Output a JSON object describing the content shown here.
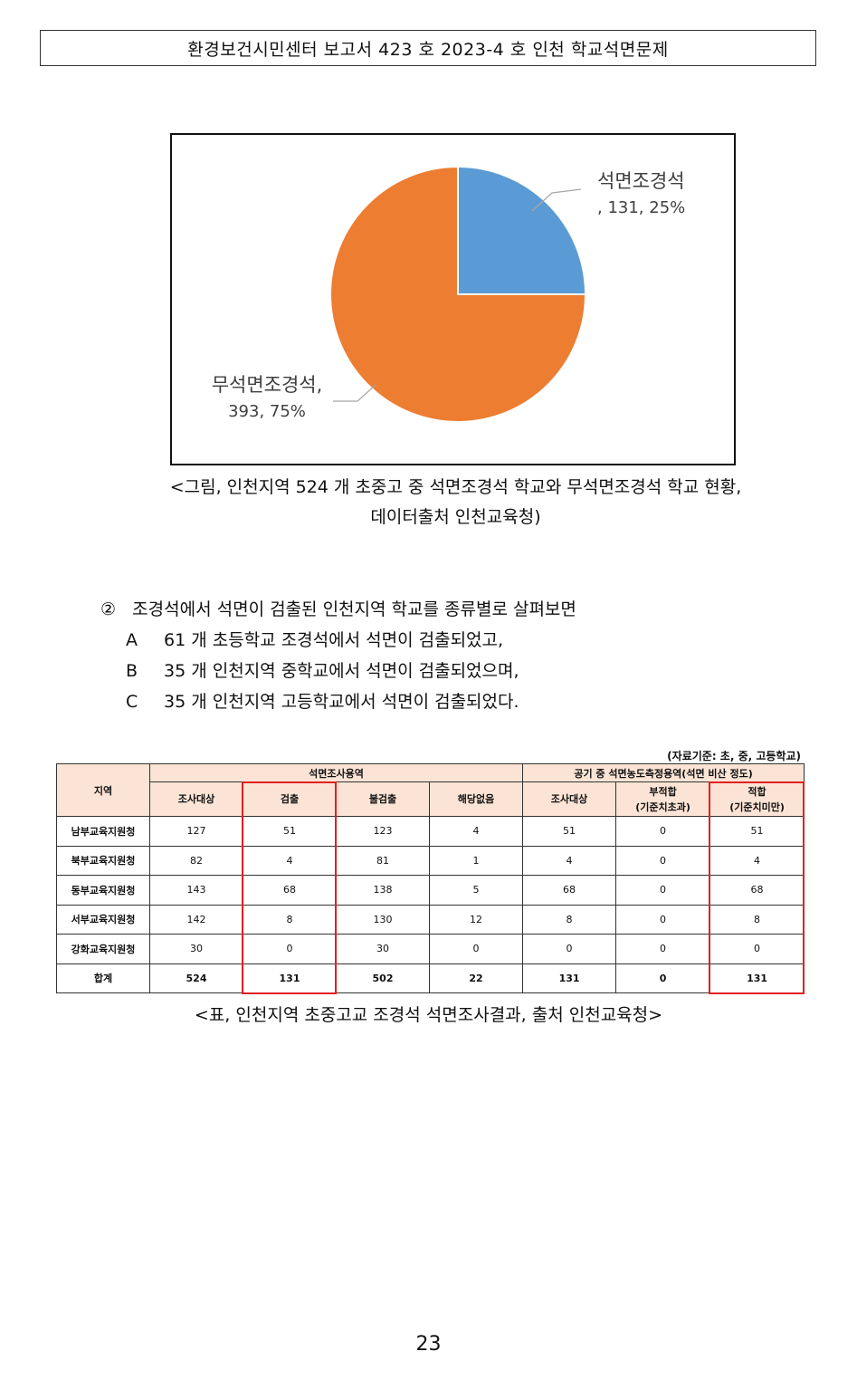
{
  "header": {
    "title": "환경보건시민센터 보고서 423 호 2023-4 호 인천 학교석면문제"
  },
  "chart_data": {
    "type": "pie",
    "slices": [
      {
        "name": "석면조경석",
        "value": 131,
        "percent": 25,
        "label_line1": "석면조경석",
        "label_line2": ", 131, 25%",
        "color": "#5b9bd5"
      },
      {
        "name": "무석면조경석",
        "value": 393,
        "percent": 75,
        "label_line1": "무석면조경석,",
        "label_line2": "393, 75%",
        "color": "#ed7d31"
      }
    ]
  },
  "figure_caption": {
    "line1": "<그림, 인천지역 524 개 초중고 중 석면조경석 학교와 무석면조경석 학교 현황,",
    "line2": "데이터출처 인천교육청)"
  },
  "section": {
    "marker": "②",
    "intro": "조경석에서 석면이 검출된 인천지역 학교를 종류별로 살펴보면",
    "items": [
      {
        "label": "A",
        "text": "61 개 초등학교 조경석에서 석면이 검출되었고,"
      },
      {
        "label": "B",
        "text": "35 개 인천지역 중학교에서 석면이 검출되었으며,"
      },
      {
        "label": "C",
        "text": "35 개 인천지역 고등학교에서 석면이 검출되었다."
      }
    ]
  },
  "table": {
    "source_note": "(자료기준: 초, 중, 고등학교)",
    "region_header": "지역",
    "group1": "석면조사용역",
    "group2": "공기 중 석면농도측정용역(석면 비산 정도)",
    "cols": {
      "c1": "조사대상",
      "c2": "검출",
      "c3": "불검출",
      "c4": "해당없음",
      "c5": "조사대상",
      "c6a": "부적합",
      "c6b": "(기준치초과)",
      "c7a": "적합",
      "c7b": "(기준치미만)"
    },
    "rows": [
      [
        "남부교육지원청",
        "127",
        "51",
        "123",
        "4",
        "51",
        "0",
        "51"
      ],
      [
        "북부교육지원청",
        "82",
        "4",
        "81",
        "1",
        "4",
        "0",
        "4"
      ],
      [
        "동부교육지원청",
        "143",
        "68",
        "138",
        "5",
        "68",
        "0",
        "68"
      ],
      [
        "서부교육지원청",
        "142",
        "8",
        "130",
        "12",
        "8",
        "0",
        "8"
      ],
      [
        "강화교육지원청",
        "30",
        "0",
        "30",
        "0",
        "0",
        "0",
        "0"
      ],
      [
        "합계",
        "524",
        "131",
        "502",
        "22",
        "131",
        "0",
        "131"
      ]
    ],
    "highlight_color": "#e02020"
  },
  "table_caption": "<표, 인천지역 초중고교 조경석 석면조사결과, 출처 인천교육청>",
  "page_number": "23"
}
